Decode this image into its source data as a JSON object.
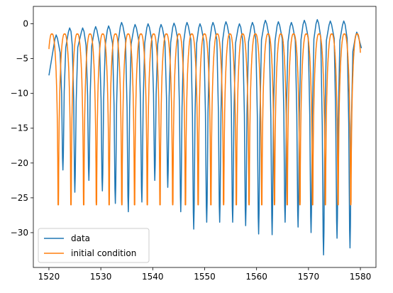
{
  "chart_data": {
    "type": "line",
    "title": "",
    "xlabel": "",
    "ylabel": "",
    "xlim": [
      1517,
      1583
    ],
    "ylim": [
      -35,
      2.5
    ],
    "x_ticks": [
      1520,
      1530,
      1540,
      1550,
      1560,
      1570,
      1580
    ],
    "y_ticks": [
      0,
      -5,
      -10,
      -15,
      -20,
      -25,
      -30
    ],
    "grid": false,
    "legend": {
      "position": "lower-left"
    },
    "series": [
      {
        "name": "data",
        "color": "#1f77b4",
        "peak_x": [
          1521.4,
          1524.0,
          1526.5,
          1529.0,
          1531.5,
          1534.0,
          1536.6,
          1539.1,
          1541.6,
          1544.1,
          1546.6,
          1549.1,
          1551.6,
          1554.1,
          1556.7,
          1559.2,
          1561.7,
          1564.2,
          1566.7,
          1569.2,
          1571.7,
          1574.2,
          1576.8,
          1579.3
        ],
        "peak_y": [
          -1.6,
          -0.6,
          -0.6,
          -0.4,
          -0.3,
          0.2,
          -0.1,
          0.0,
          -0.1,
          0.1,
          0.2,
          0.0,
          0.2,
          0.3,
          0.0,
          0.2,
          0.5,
          0.3,
          0.2,
          0.5,
          0.6,
          0.4,
          0.4,
          -1.2
        ],
        "dip_x": [
          1522.7,
          1525.0,
          1527.7,
          1530.3,
          1532.8,
          1535.3,
          1537.9,
          1540.4,
          1542.9,
          1545.4,
          1547.9,
          1550.4,
          1552.9,
          1555.4,
          1557.9,
          1560.4,
          1563.0,
          1565.5,
          1568.0,
          1570.5,
          1572.9,
          1575.5,
          1578.0
        ],
        "dip_y": [
          -21.0,
          -24.2,
          -22.5,
          -24.0,
          -25.8,
          -27.0,
          -25.6,
          -22.5,
          -23.5,
          -27.0,
          -29.5,
          -28.5,
          -28.5,
          -28.5,
          -29.0,
          -30.2,
          -30.3,
          -28.5,
          -29.2,
          -30.0,
          -33.2,
          -30.8,
          -32.2
        ],
        "start": [
          1520,
          -7.4
        ],
        "end": [
          1580.2,
          -3.5
        ]
      },
      {
        "name": "initial condition",
        "color": "#ff7f0e",
        "period": 2.45,
        "first_dip_x": 1521.8,
        "dip_y": -26.0,
        "peak_y": -0.6,
        "x_start": 1520,
        "x_end": 1580
      }
    ]
  }
}
